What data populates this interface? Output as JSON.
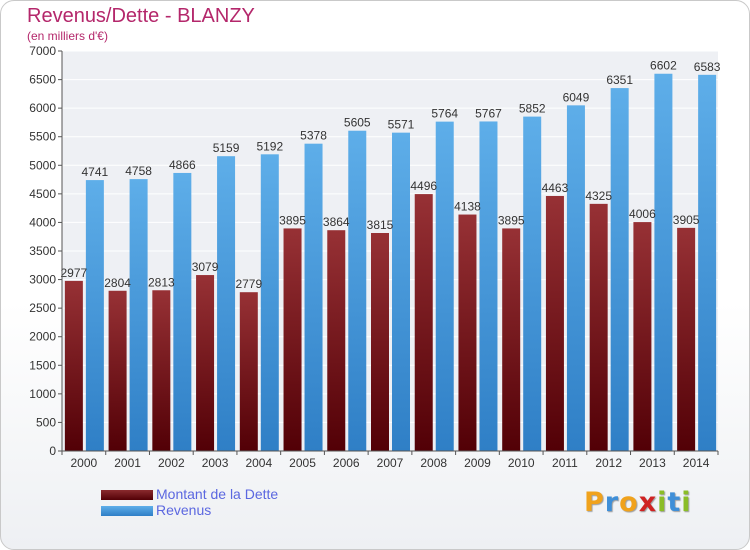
{
  "chart_data": {
    "type": "bar",
    "title": "Revenus/Dette - BLANZY",
    "subtitle": "(en milliers d'€)",
    "categories": [
      "2000",
      "2001",
      "2002",
      "2003",
      "2004",
      "2005",
      "2006",
      "2007",
      "2008",
      "2009",
      "2010",
      "2011",
      "2012",
      "2013",
      "2014"
    ],
    "series": [
      {
        "name": "Montant de la Dette",
        "color": "#6e0d12",
        "values": [
          2977,
          2804,
          2813,
          3079,
          2779,
          3895,
          3864,
          3815,
          4496,
          4138,
          3895,
          4463,
          4325,
          4006,
          3905
        ],
        "labels": [
          "2977",
          "2804",
          "2813",
          "3079",
          "2779",
          "3895",
          "3864",
          "3815",
          "4496",
          "4138",
          "3895",
          "4463",
          "4325",
          "4006",
          "3905"
        ]
      },
      {
        "name": "Revenus",
        "color": "#4a9fe0",
        "values": [
          4741,
          4758,
          4866,
          5159,
          5192,
          5378,
          5605,
          5571,
          5764,
          5767,
          5852,
          6049,
          6351,
          6602,
          6583
        ],
        "labels": [
          "4741",
          "4758",
          "4866",
          "5159",
          "5192",
          "5378",
          "5605",
          "5571",
          "5764",
          "5767",
          "5852",
          "6049",
          "6351",
          "6602",
          "6583"
        ]
      }
    ],
    "yticks": [
      "0",
      "500",
      "1000",
      "1500",
      "2000",
      "2500",
      "3000",
      "3500",
      "4000",
      "4500",
      "5000",
      "5500",
      "6000",
      "6500",
      "7000"
    ],
    "ylim": [
      0,
      7000
    ],
    "grid": true,
    "legend_position": "bottom-left"
  },
  "branding": {
    "logo_letters": [
      "P",
      "r",
      "o",
      "x",
      "i",
      "t",
      "i"
    ],
    "logo_colors": [
      "#f0a21c",
      "#3f8fd8",
      "#f0a21c",
      "#cf2222",
      "#8bbd27",
      "#3f8fd8",
      "#8bbd27"
    ]
  }
}
